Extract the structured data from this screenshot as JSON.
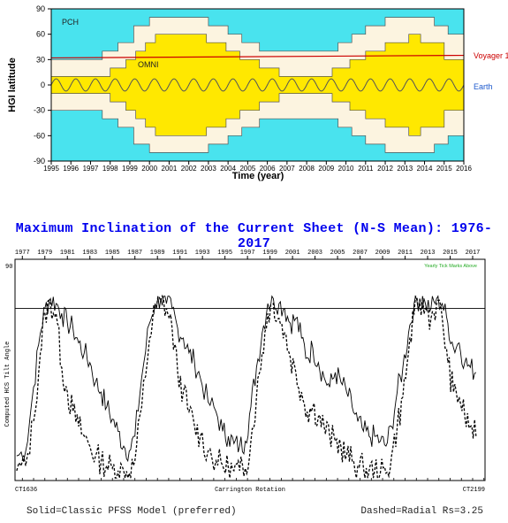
{
  "chart_data": [
    {
      "type": "area",
      "ylabel": "HGI latitude",
      "xlabel": "Time (year)",
      "xlim": [
        1995,
        2016
      ],
      "ylim": [
        -90,
        90
      ],
      "x_ticks": [
        1995,
        1996,
        1997,
        1998,
        1999,
        2000,
        2001,
        2002,
        2003,
        2004,
        2005,
        2006,
        2007,
        2008,
        2009,
        2010,
        2011,
        2012,
        2013,
        2014,
        2015,
        2016
      ],
      "y_ticks": [
        90,
        60,
        30,
        0,
        -30,
        -60,
        -90
      ],
      "regions": {
        "pch_label": "PCH",
        "omni_label": "OMNI",
        "colors": {
          "pch": "#49e3ee",
          "band": "#fcf4e0",
          "omni": "#ffe800"
        },
        "band_halfwidth": [
          {
            "x": 1995.0,
            "v": 30
          },
          {
            "x": 1997.6,
            "v": 40
          },
          {
            "x": 1998.4,
            "v": 50
          },
          {
            "x": 1999.2,
            "v": 70
          },
          {
            "x": 2000.0,
            "v": 80
          },
          {
            "x": 2003.0,
            "v": 70
          },
          {
            "x": 2004.0,
            "v": 60
          },
          {
            "x": 2004.7,
            "v": 50
          },
          {
            "x": 2005.6,
            "v": 40
          },
          {
            "x": 2009.6,
            "v": 50
          },
          {
            "x": 2010.3,
            "v": 60
          },
          {
            "x": 2011.0,
            "v": 70
          },
          {
            "x": 2012.0,
            "v": 80
          },
          {
            "x": 2014.5,
            "v": 70
          },
          {
            "x": 2015.2,
            "v": 60
          },
          {
            "x": 2016.0,
            "v": 60
          }
        ],
        "omni_halfwidth": [
          {
            "x": 1995.0,
            "v": 10
          },
          {
            "x": 1998.0,
            "v": 20
          },
          {
            "x": 1998.8,
            "v": 30
          },
          {
            "x": 1999.3,
            "v": 40
          },
          {
            "x": 1999.8,
            "v": 50
          },
          {
            "x": 2000.3,
            "v": 60
          },
          {
            "x": 2002.9,
            "v": 50
          },
          {
            "x": 2003.9,
            "v": 40
          },
          {
            "x": 2004.6,
            "v": 30
          },
          {
            "x": 2005.6,
            "v": 20
          },
          {
            "x": 2006.6,
            "v": 10
          },
          {
            "x": 2009.3,
            "v": 20
          },
          {
            "x": 2010.2,
            "v": 30
          },
          {
            "x": 2011.0,
            "v": 40
          },
          {
            "x": 2012.0,
            "v": 50
          },
          {
            "x": 2013.2,
            "v": 60
          },
          {
            "x": 2013.8,
            "v": 50
          },
          {
            "x": 2015.0,
            "v": 30
          },
          {
            "x": 2016.0,
            "v": 30
          }
        ]
      },
      "series": [
        {
          "name": "Voyager 1",
          "color": "#cc0000",
          "values": [
            [
              1995,
              32
            ],
            [
              2016,
              35
            ]
          ]
        },
        {
          "name": "Earth",
          "color": "#555555",
          "amplitude": 7.25,
          "period": 1.0
        }
      ]
    },
    {
      "type": "line",
      "title": "Maximum Inclination of the Current Sheet (N-S Mean): 1976-2017",
      "ylabel": "Computed HCS Tilt Angle",
      "xlabel": "Carrington Rotation",
      "x_start_label": "CT1636",
      "x_end_label": "CT2199",
      "xlim": [
        1976.35,
        2018.1
      ],
      "ylim": [
        0,
        90
      ],
      "y_tick_labels": [
        "90"
      ],
      "year_ticks": [
        1977,
        1979,
        1981,
        1983,
        1985,
        1987,
        1989,
        1991,
        1993,
        1995,
        1997,
        1999,
        2001,
        2003,
        2005,
        2007,
        2009,
        2011,
        2013,
        2015,
        2017
      ],
      "annotation": "Yearly Tick Marks Above",
      "reference_line": 70,
      "series": [
        {
          "name": "Classic PFSS Model",
          "style": "solid",
          "values": [
            [
              1976.5,
              10
            ],
            [
              1977.3,
              12
            ],
            [
              1978.0,
              38
            ],
            [
              1978.6,
              60
            ],
            [
              1979.0,
              70
            ],
            [
              1979.5,
              74
            ],
            [
              1980.0,
              72
            ],
            [
              1980.5,
              68
            ],
            [
              1981.0,
              64
            ],
            [
              1981.5,
              62
            ],
            [
              1982.0,
              56
            ],
            [
              1982.5,
              52
            ],
            [
              1983.0,
              48
            ],
            [
              1983.5,
              40
            ],
            [
              1984.0,
              36
            ],
            [
              1984.5,
              30
            ],
            [
              1985.0,
              25
            ],
            [
              1985.5,
              20
            ],
            [
              1986.0,
              14
            ],
            [
              1986.5,
              12
            ],
            [
              1987.0,
              18
            ],
            [
              1987.6,
              42
            ],
            [
              1988.3,
              64
            ],
            [
              1988.8,
              72
            ],
            [
              1989.3,
              74
            ],
            [
              1989.8,
              72
            ],
            [
              1990.3,
              70
            ],
            [
              1990.8,
              62
            ],
            [
              1991.3,
              58
            ],
            [
              1991.8,
              52
            ],
            [
              1992.3,
              48
            ],
            [
              1992.8,
              42
            ],
            [
              1993.5,
              32
            ],
            [
              1994.2,
              28
            ],
            [
              1994.8,
              20
            ],
            [
              1995.3,
              18
            ],
            [
              1995.8,
              15
            ],
            [
              1996.3,
              14
            ],
            [
              1996.8,
              16
            ],
            [
              1997.3,
              30
            ],
            [
              1997.8,
              46
            ],
            [
              1998.3,
              60
            ],
            [
              1998.8,
              72
            ],
            [
              1999.3,
              74
            ],
            [
              1999.8,
              72
            ],
            [
              2000.3,
              70
            ],
            [
              2000.8,
              64
            ],
            [
              2001.3,
              66
            ],
            [
              2001.8,
              58
            ],
            [
              2002.3,
              50
            ],
            [
              2002.8,
              54
            ],
            [
              2003.3,
              48
            ],
            [
              2003.8,
              42
            ],
            [
              2004.3,
              38
            ],
            [
              2004.8,
              44
            ],
            [
              2005.3,
              40
            ],
            [
              2005.8,
              36
            ],
            [
              2006.3,
              30
            ],
            [
              2006.8,
              24
            ],
            [
              2007.3,
              20
            ],
            [
              2007.8,
              18
            ],
            [
              2008.3,
              18
            ],
            [
              2008.8,
              16
            ],
            [
              2009.3,
              14
            ],
            [
              2009.8,
              22
            ],
            [
              2010.3,
              36
            ],
            [
              2010.8,
              46
            ],
            [
              2011.3,
              60
            ],
            [
              2011.8,
              72
            ],
            [
              2012.3,
              74
            ],
            [
              2012.8,
              72
            ],
            [
              2013.3,
              70
            ],
            [
              2013.8,
              74
            ],
            [
              2014.3,
              72
            ],
            [
              2014.8,
              64
            ],
            [
              2015.3,
              54
            ],
            [
              2015.8,
              56
            ],
            [
              2016.3,
              48
            ],
            [
              2016.8,
              46
            ],
            [
              2017.3,
              44
            ]
          ]
        },
        {
          "name": "Radial Rs=3.25",
          "style": "dashed",
          "values": [
            [
              1976.5,
              4
            ],
            [
              1977.3,
              6
            ],
            [
              1978.0,
              24
            ],
            [
              1978.6,
              52
            ],
            [
              1979.0,
              68
            ],
            [
              1979.5,
              72
            ],
            [
              1980.0,
              68
            ],
            [
              1980.5,
              46
            ],
            [
              1981.0,
              36
            ],
            [
              1981.5,
              28
            ],
            [
              1982.0,
              22
            ],
            [
              1982.5,
              18
            ],
            [
              1983.0,
              14
            ],
            [
              1983.5,
              10
            ],
            [
              1984.0,
              8
            ],
            [
              1984.5,
              6
            ],
            [
              1985.0,
              5
            ],
            [
              1985.5,
              4
            ],
            [
              1986.0,
              4
            ],
            [
              1986.5,
              3
            ],
            [
              1987.0,
              8
            ],
            [
              1987.6,
              30
            ],
            [
              1988.3,
              58
            ],
            [
              1988.8,
              70
            ],
            [
              1989.3,
              73
            ],
            [
              1989.8,
              70
            ],
            [
              1990.3,
              62
            ],
            [
              1990.8,
              44
            ],
            [
              1991.3,
              36
            ],
            [
              1991.8,
              28
            ],
            [
              1992.3,
              22
            ],
            [
              1992.8,
              18
            ],
            [
              1993.5,
              12
            ],
            [
              1994.2,
              8
            ],
            [
              1994.8,
              6
            ],
            [
              1995.3,
              5
            ],
            [
              1995.8,
              4
            ],
            [
              1996.3,
              4
            ],
            [
              1996.8,
              5
            ],
            [
              1997.3,
              16
            ],
            [
              1997.8,
              34
            ],
            [
              1998.3,
              52
            ],
            [
              1998.8,
              68
            ],
            [
              1999.3,
              72
            ],
            [
              1999.8,
              66
            ],
            [
              2000.3,
              60
            ],
            [
              2000.8,
              50
            ],
            [
              2001.3,
              44
            ],
            [
              2001.8,
              36
            ],
            [
              2002.3,
              28
            ],
            [
              2002.8,
              30
            ],
            [
              2003.3,
              26
            ],
            [
              2003.8,
              22
            ],
            [
              2004.3,
              18
            ],
            [
              2004.8,
              16
            ],
            [
              2005.3,
              14
            ],
            [
              2005.8,
              10
            ],
            [
              2006.3,
              8
            ],
            [
              2006.8,
              6
            ],
            [
              2007.3,
              5
            ],
            [
              2007.8,
              4
            ],
            [
              2008.3,
              4
            ],
            [
              2008.8,
              3
            ],
            [
              2009.3,
              3
            ],
            [
              2009.8,
              10
            ],
            [
              2010.3,
              22
            ],
            [
              2010.8,
              34
            ],
            [
              2011.3,
              52
            ],
            [
              2011.8,
              68
            ],
            [
              2012.3,
              72
            ],
            [
              2012.8,
              70
            ],
            [
              2013.3,
              66
            ],
            [
              2013.8,
              72
            ],
            [
              2014.3,
              66
            ],
            [
              2014.8,
              48
            ],
            [
              2015.3,
              36
            ],
            [
              2015.8,
              34
            ],
            [
              2016.3,
              26
            ],
            [
              2016.8,
              22
            ],
            [
              2017.3,
              18
            ]
          ]
        }
      ]
    }
  ],
  "captions": {
    "solid": "Solid=Classic PFSS Model (preferred)",
    "dashed": "Dashed=Radial Rs=3.25"
  }
}
